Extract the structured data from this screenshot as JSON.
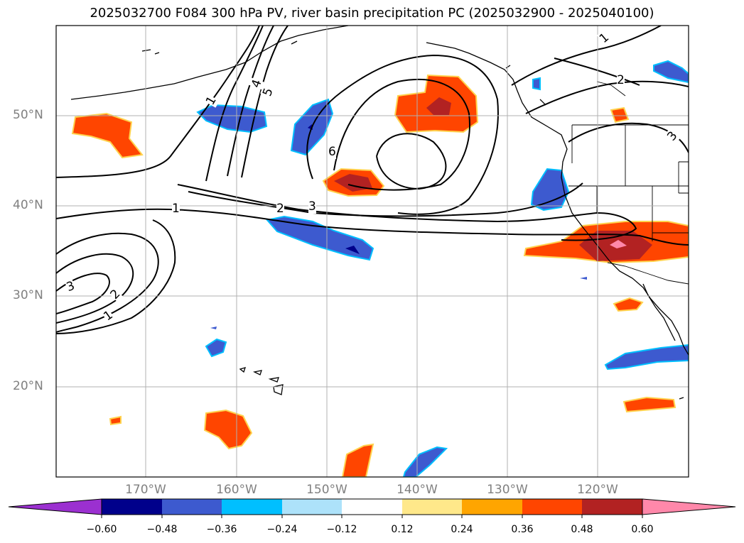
{
  "title": "2025032700 F084 300 hPa PV, river basin precipitation PC (2025032900 - 2025040100)",
  "map": {
    "lat_labels": [
      {
        "value": 50,
        "text": "50°N"
      },
      {
        "value": 40,
        "text": "40°N"
      },
      {
        "value": 30,
        "text": "30°N"
      },
      {
        "value": 20,
        "text": "20°N"
      }
    ],
    "lon_labels": [
      {
        "value": -170,
        "text": "170°W"
      },
      {
        "value": -160,
        "text": "160°W"
      },
      {
        "value": -150,
        "text": "150°W"
      },
      {
        "value": -140,
        "text": "140°W"
      },
      {
        "value": -130,
        "text": "130°W"
      },
      {
        "value": -120,
        "text": "120°W"
      }
    ],
    "contour_labels": [
      "1",
      "2",
      "3",
      "4",
      "5",
      "6"
    ]
  },
  "colorbar": {
    "ticks": [
      "−0.60",
      "−0.48",
      "−0.36",
      "−0.24",
      "−0.12",
      "0.12",
      "0.24",
      "0.36",
      "0.48",
      "0.60"
    ],
    "colors": {
      "under": "#9b30d0",
      "bins": [
        "#00008b",
        "#3d5acf",
        "#00bfff",
        "#ade2fa",
        "#ffffff",
        "#ffe88a",
        "#ffa500",
        "#ff4500",
        "#b22222"
      ],
      "over": "#ff88aa"
    }
  }
}
